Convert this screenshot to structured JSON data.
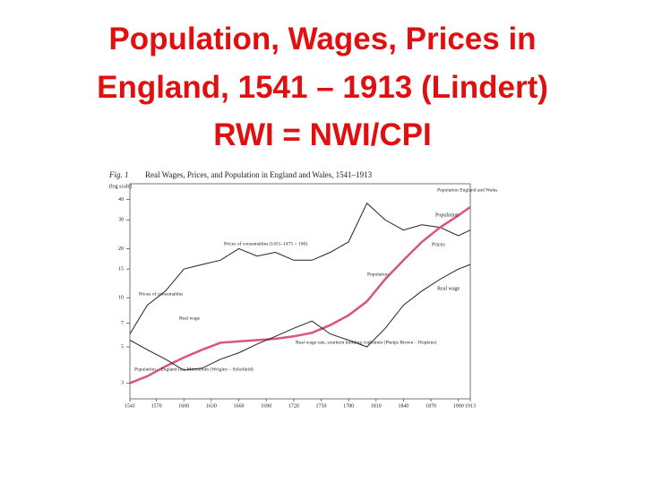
{
  "slide": {
    "title_lines": [
      "Population, Wages, Prices in",
      "England, 1541 – 1913 (Lindert)",
      "RWI = NWI/CPI"
    ]
  },
  "chart_data": {
    "type": "line",
    "figure_label": "Fig. 1",
    "title": "Real Wages, Prices, and Population in England and Wales, 1541–1913",
    "y_label": "(log scale)",
    "log_scale": true,
    "x": [
      1541,
      1560,
      1580,
      1600,
      1620,
      1640,
      1660,
      1680,
      1700,
      1720,
      1740,
      1760,
      1780,
      1800,
      1820,
      1840,
      1860,
      1880,
      1900,
      1913
    ],
    "xlim": [
      1541,
      1913
    ],
    "xticks": [
      1541,
      1570,
      1600,
      1630,
      1660,
      1690,
      1720,
      1750,
      1780,
      1810,
      1840,
      1870,
      1900,
      1913
    ],
    "ylim": [
      2.4,
      50
    ],
    "yticks": [
      3,
      5,
      7,
      10,
      15,
      20,
      30,
      40
    ],
    "series": [
      {
        "name": "Prices",
        "color": "#222222",
        "values": [
          6,
          9,
          11,
          15,
          16,
          17,
          20,
          18,
          19,
          17,
          17,
          19,
          22,
          38,
          30,
          26,
          28,
          27,
          24,
          26
        ]
      },
      {
        "name": "Population",
        "color": "#d9557a",
        "values": [
          3,
          3.3,
          3.8,
          4.3,
          4.8,
          5.3,
          5.4,
          5.5,
          5.6,
          5.8,
          6.1,
          6.8,
          7.8,
          9.5,
          13,
          17,
          22,
          27,
          32,
          36
        ]
      },
      {
        "name": "Real wage",
        "color": "#222222",
        "values": [
          5.5,
          4.8,
          4.2,
          3.6,
          3.7,
          4.2,
          4.6,
          5.2,
          5.8,
          6.5,
          7.2,
          6,
          5.5,
          5,
          6.5,
          9,
          11,
          13,
          15,
          16
        ]
      }
    ],
    "annotations": [
      "Prices of consumables (1451–1475 = 100)",
      "Prices of consumables",
      "Population England and Wales",
      "Population",
      "Real wage",
      "Real wage rate, southern building craftsmen (Phelps Brown – Hopkins)",
      "Population – England less Monmouth (Wrigley – Schofield)"
    ]
  }
}
